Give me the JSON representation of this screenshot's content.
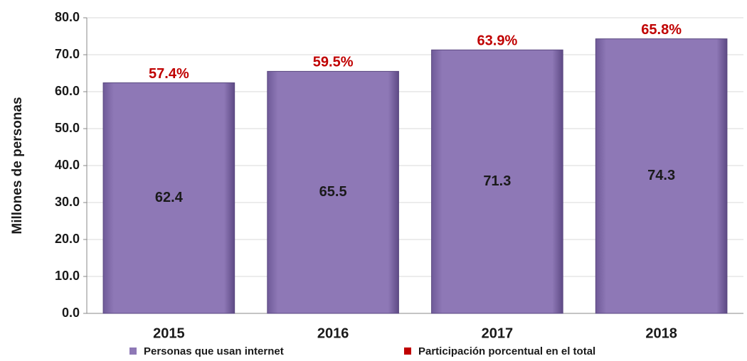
{
  "chart_data": {
    "type": "bar",
    "y_label": "Millones de personas",
    "categories": [
      "2015",
      "2016",
      "2017",
      "2018"
    ],
    "series": [
      {
        "name": "Personas que usan internet",
        "color": "#8e78b6",
        "values": [
          62.4,
          65.5,
          71.3,
          74.3
        ]
      },
      {
        "name": "Participación porcentual en el total",
        "color": "#c00000",
        "values": [
          57.4,
          59.5,
          63.9,
          65.8
        ],
        "value_labels": [
          "57.4%",
          "59.5%",
          "63.9%",
          "65.8%"
        ]
      }
    ],
    "ylim": [
      0,
      80
    ],
    "yticks": [
      {
        "value": 0,
        "label": "0.0"
      },
      {
        "value": 10,
        "label": "10.0"
      },
      {
        "value": 20,
        "label": "20.0"
      },
      {
        "value": 30,
        "label": "30.0"
      },
      {
        "value": 40,
        "label": "40.0"
      },
      {
        "value": 50,
        "label": "50.0"
      },
      {
        "value": 60,
        "label": "60.0"
      },
      {
        "value": 70,
        "label": "70.0"
      },
      {
        "value": 80,
        "label": "80.0"
      }
    ],
    "grid": true
  }
}
